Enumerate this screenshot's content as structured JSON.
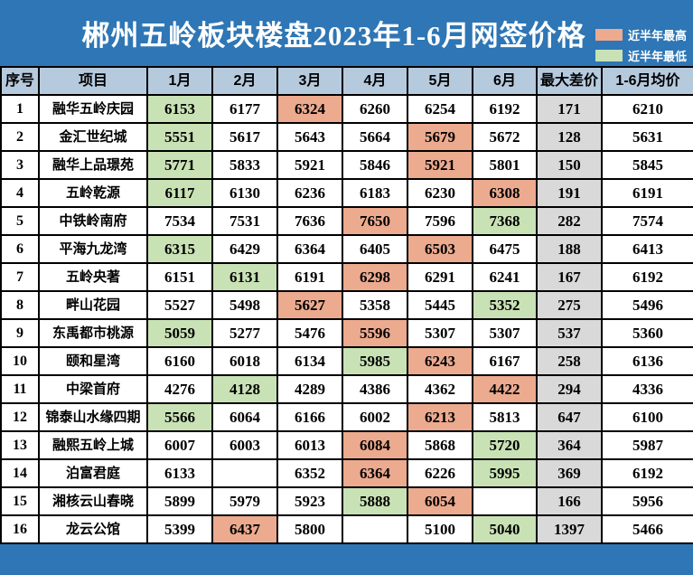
{
  "colors": {
    "background": "#2e76b5",
    "header_cell": "#b6cade",
    "highest_cell": "#ecaa8f",
    "lowest_cell": "#c9e2b5",
    "diff_column_cell": "#d9d9d9",
    "title_text": "#ffffff"
  },
  "chart_data": {
    "type": "table",
    "title": "郴州五岭板块楼盘2023年1-6月网签价格",
    "legend": {
      "high_label": "近半年最高",
      "low_label": "近半年最低"
    },
    "columns": [
      "序号",
      "项目",
      "1月",
      "2月",
      "3月",
      "4月",
      "5月",
      "6月",
      "最大差价",
      "1-6月均价"
    ],
    "rows": [
      {
        "no": 1,
        "name": "融华五岭庆园",
        "months": [
          6153,
          6177,
          6324,
          6260,
          6254,
          6192
        ],
        "flags": [
          "low",
          "",
          "high",
          "",
          "",
          ""
        ],
        "diff": 171,
        "avg": 6210
      },
      {
        "no": 2,
        "name": "金汇世纪城",
        "months": [
          5551,
          5617,
          5643,
          5664,
          5679,
          5672
        ],
        "flags": [
          "low",
          "",
          "",
          "",
          "high",
          ""
        ],
        "diff": 128,
        "avg": 5631
      },
      {
        "no": 3,
        "name": "融华上品璟苑",
        "months": [
          5771,
          5833,
          5921,
          5846,
          5921,
          5801
        ],
        "flags": [
          "low",
          "",
          "",
          "",
          "high",
          ""
        ],
        "diff": 150,
        "avg": 5845
      },
      {
        "no": 4,
        "name": "五岭乾源",
        "months": [
          6117,
          6130,
          6236,
          6183,
          6230,
          6308
        ],
        "flags": [
          "low",
          "",
          "",
          "",
          "",
          "high"
        ],
        "diff": 191,
        "avg": 6191
      },
      {
        "no": 5,
        "name": "中铁岭南府",
        "months": [
          7534,
          7531,
          7636,
          7650,
          7596,
          7368
        ],
        "flags": [
          "",
          "",
          "",
          "high",
          "",
          "low"
        ],
        "diff": 282,
        "avg": 7574
      },
      {
        "no": 6,
        "name": "平海九龙湾",
        "months": [
          6315,
          6429,
          6364,
          6405,
          6503,
          6475
        ],
        "flags": [
          "low",
          "",
          "",
          "",
          "high",
          ""
        ],
        "diff": 188,
        "avg": 6413
      },
      {
        "no": 7,
        "name": "五岭央著",
        "months": [
          6151,
          6131,
          6191,
          6298,
          6291,
          6241
        ],
        "flags": [
          "",
          "low",
          "",
          "high",
          "",
          ""
        ],
        "diff": 167,
        "avg": 6192
      },
      {
        "no": 8,
        "name": "畔山花园",
        "months": [
          5527,
          5498,
          5627,
          5358,
          5445,
          5352
        ],
        "flags": [
          "",
          "",
          "high",
          "",
          "",
          "low"
        ],
        "diff": 275,
        "avg": 5496
      },
      {
        "no": 9,
        "name": "东禹都市桃源",
        "months": [
          5059,
          5277,
          5476,
          5596,
          5307,
          5307
        ],
        "flags": [
          "low",
          "",
          "",
          "high",
          "",
          ""
        ],
        "diff": 537,
        "avg": 5360
      },
      {
        "no": 10,
        "name": "颐和星湾",
        "months": [
          6160,
          6018,
          6134,
          5985,
          6243,
          6167
        ],
        "flags": [
          "",
          "",
          "",
          "low",
          "high",
          ""
        ],
        "diff": 258,
        "avg": 6136
      },
      {
        "no": 11,
        "name": "中梁首府",
        "months": [
          4276,
          4128,
          4289,
          4386,
          4362,
          4422
        ],
        "flags": [
          "",
          "low",
          "",
          "",
          "",
          "high"
        ],
        "diff": 294,
        "avg": 4336
      },
      {
        "no": 12,
        "name": "锦泰山水缘四期",
        "months": [
          5566,
          6064,
          6166,
          6002,
          6213,
          5813
        ],
        "flags": [
          "low",
          "",
          "",
          "",
          "high",
          ""
        ],
        "diff": 647,
        "avg": 6100
      },
      {
        "no": 13,
        "name": "融熙五岭上城",
        "months": [
          6007,
          6003,
          6013,
          6084,
          5868,
          5720
        ],
        "flags": [
          "",
          "",
          "",
          "high",
          "",
          "low"
        ],
        "diff": 364,
        "avg": 5987
      },
      {
        "no": 14,
        "name": "泊富君庭",
        "months": [
          6133,
          null,
          6352,
          6364,
          6226,
          5995
        ],
        "flags": [
          "",
          "",
          "",
          "high",
          "",
          "low"
        ],
        "diff": 369,
        "avg": 6192
      },
      {
        "no": 15,
        "name": "湘核云山春晓",
        "months": [
          5899,
          5979,
          5923,
          5888,
          6054,
          null
        ],
        "flags": [
          "",
          "",
          "",
          "low",
          "high",
          ""
        ],
        "diff": 166,
        "avg": 5956
      },
      {
        "no": 16,
        "name": "龙云公馆",
        "months": [
          5399,
          6437,
          5800,
          null,
          5100,
          5040
        ],
        "flags": [
          "",
          "high",
          "",
          "",
          "",
          "low"
        ],
        "diff": 1397,
        "avg": 5466
      }
    ]
  }
}
